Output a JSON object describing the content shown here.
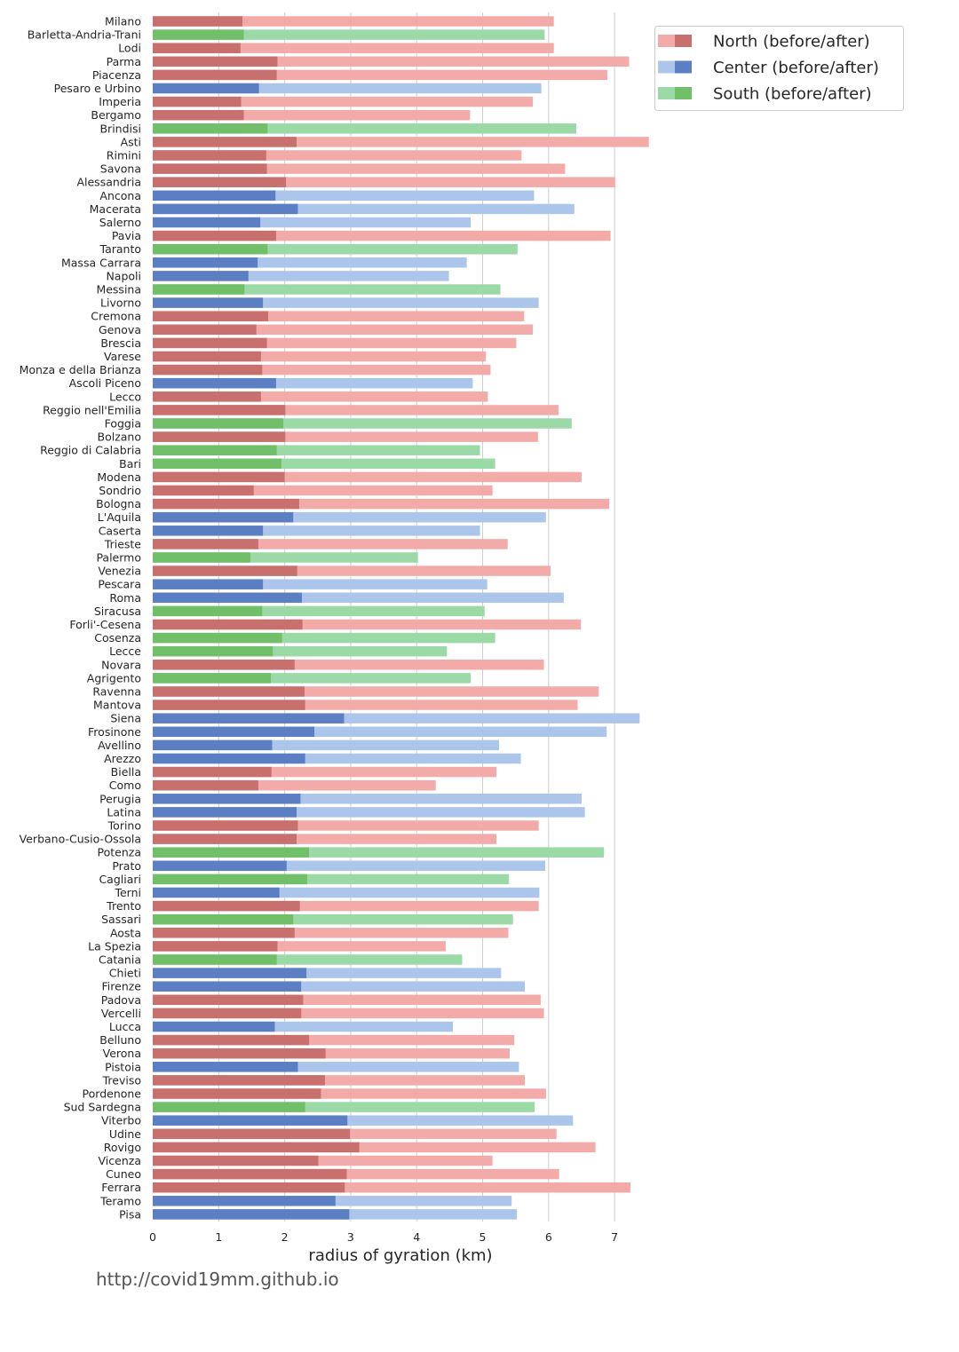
{
  "colors": {
    "North": {
      "before": "#c8706e",
      "after": "#f2aba8"
    },
    "Center": {
      "before": "#5b7fc2",
      "after": "#abc6ea"
    },
    "South": {
      "before": "#72bf6a",
      "after": "#9bdaa6"
    },
    "grid": "#cfcfcf",
    "text": "#262626"
  },
  "footer": {
    "url": "http://covid19mm.github.io"
  },
  "chart_data": {
    "type": "bar",
    "orientation": "horizontal",
    "stacked_overlay": true,
    "xlabel": "radius of gyration (km)",
    "xlim": [
      0,
      7.5
    ],
    "xticks": [
      0,
      1,
      2,
      3,
      4,
      5,
      6,
      7
    ],
    "grid": "vertical",
    "legend": {
      "placement": "top-right",
      "entries": [
        {
          "label": "North (before/after)",
          "group": "North"
        },
        {
          "label": "Center (before/after)",
          "group": "Center"
        },
        {
          "label": "South (before/after)",
          "group": "South"
        }
      ]
    },
    "series_names": [
      "before",
      "after"
    ],
    "rows": [
      {
        "province": "Milano",
        "group": "North",
        "before": 1.36,
        "after": 6.08
      },
      {
        "province": "Barletta-Andria-Trani",
        "group": "South",
        "before": 1.38,
        "after": 5.94
      },
      {
        "province": "Lodi",
        "group": "North",
        "before": 1.33,
        "after": 6.08
      },
      {
        "province": "Parma",
        "group": "North",
        "before": 1.89,
        "after": 7.22
      },
      {
        "province": "Piacenza",
        "group": "North",
        "before": 1.88,
        "after": 6.89
      },
      {
        "province": "Pesaro e Urbino",
        "group": "Center",
        "before": 1.61,
        "after": 5.89
      },
      {
        "province": "Imperia",
        "group": "North",
        "before": 1.34,
        "after": 5.76
      },
      {
        "province": "Bergamo",
        "group": "North",
        "before": 1.38,
        "after": 4.81
      },
      {
        "province": "Brindisi",
        "group": "South",
        "before": 1.74,
        "after": 6.42
      },
      {
        "province": "Asti",
        "group": "North",
        "before": 2.18,
        "after": 7.52
      },
      {
        "province": "Rimini",
        "group": "North",
        "before": 1.72,
        "after": 5.59
      },
      {
        "province": "Savona",
        "group": "North",
        "before": 1.73,
        "after": 6.25
      },
      {
        "province": "Alessandria",
        "group": "North",
        "before": 2.02,
        "after": 7.01
      },
      {
        "province": "Ancona",
        "group": "Center",
        "before": 1.86,
        "after": 5.78
      },
      {
        "province": "Macerata",
        "group": "Center",
        "before": 2.2,
        "after": 6.39
      },
      {
        "province": "Salerno",
        "group": "Center",
        "before": 1.63,
        "after": 4.82
      },
      {
        "province": "Pavia",
        "group": "North",
        "before": 1.87,
        "after": 6.94
      },
      {
        "province": "Taranto",
        "group": "South",
        "before": 1.74,
        "after": 5.53
      },
      {
        "province": "Massa Carrara",
        "group": "Center",
        "before": 1.59,
        "after": 4.76
      },
      {
        "province": "Napoli",
        "group": "Center",
        "before": 1.45,
        "after": 4.49
      },
      {
        "province": "Messina",
        "group": "South",
        "before": 1.39,
        "after": 5.27
      },
      {
        "province": "Livorno",
        "group": "Center",
        "before": 1.67,
        "after": 5.85
      },
      {
        "province": "Cremona",
        "group": "North",
        "before": 1.75,
        "after": 5.63
      },
      {
        "province": "Genova",
        "group": "North",
        "before": 1.57,
        "after": 5.76
      },
      {
        "province": "Brescia",
        "group": "North",
        "before": 1.73,
        "after": 5.51
      },
      {
        "province": "Varese",
        "group": "North",
        "before": 1.64,
        "after": 5.05
      },
      {
        "province": "Monza e della Brianza",
        "group": "North",
        "before": 1.66,
        "after": 5.12
      },
      {
        "province": "Ascoli Piceno",
        "group": "Center",
        "before": 1.87,
        "after": 4.85
      },
      {
        "province": "Lecco",
        "group": "North",
        "before": 1.64,
        "after": 5.08
      },
      {
        "province": "Reggio nell'Emilia",
        "group": "North",
        "before": 2.01,
        "after": 6.15
      },
      {
        "province": "Foggia",
        "group": "South",
        "before": 1.98,
        "after": 6.35
      },
      {
        "province": "Bolzano",
        "group": "North",
        "before": 2.01,
        "after": 5.84
      },
      {
        "province": "Reggio di Calabria",
        "group": "South",
        "before": 1.88,
        "after": 4.96
      },
      {
        "province": "Bari",
        "group": "South",
        "before": 1.95,
        "after": 5.19
      },
      {
        "province": "Modena",
        "group": "North",
        "before": 2.0,
        "after": 6.5
      },
      {
        "province": "Sondrio",
        "group": "North",
        "before": 1.53,
        "after": 5.15
      },
      {
        "province": "Bologna",
        "group": "North",
        "before": 2.22,
        "after": 6.92
      },
      {
        "province": "L'Aquila",
        "group": "Center",
        "before": 2.13,
        "after": 5.96
      },
      {
        "province": "Caserta",
        "group": "Center",
        "before": 1.67,
        "after": 4.96
      },
      {
        "province": "Trieste",
        "group": "North",
        "before": 1.6,
        "after": 5.38
      },
      {
        "province": "Palermo",
        "group": "South",
        "before": 1.48,
        "after": 4.02
      },
      {
        "province": "Venezia",
        "group": "North",
        "before": 2.19,
        "after": 6.03
      },
      {
        "province": "Pescara",
        "group": "Center",
        "before": 1.67,
        "after": 5.07
      },
      {
        "province": "Roma",
        "group": "Center",
        "before": 2.26,
        "after": 6.23
      },
      {
        "province": "Siracusa",
        "group": "South",
        "before": 1.66,
        "after": 5.03
      },
      {
        "province": "Forli'-Cesena",
        "group": "North",
        "before": 2.27,
        "after": 6.49
      },
      {
        "province": "Cosenza",
        "group": "South",
        "before": 1.96,
        "after": 5.19
      },
      {
        "province": "Lecce",
        "group": "South",
        "before": 1.82,
        "after": 4.46
      },
      {
        "province": "Novara",
        "group": "North",
        "before": 2.15,
        "after": 5.93
      },
      {
        "province": "Agrigento",
        "group": "South",
        "before": 1.79,
        "after": 4.82
      },
      {
        "province": "Ravenna",
        "group": "North",
        "before": 2.3,
        "after": 6.76
      },
      {
        "province": "Mantova",
        "group": "North",
        "before": 2.31,
        "after": 6.44
      },
      {
        "province": "Siena",
        "group": "Center",
        "before": 2.9,
        "after": 7.38
      },
      {
        "province": "Frosinone",
        "group": "Center",
        "before": 2.45,
        "after": 6.88
      },
      {
        "province": "Avellino",
        "group": "Center",
        "before": 1.81,
        "after": 5.25
      },
      {
        "province": "Arezzo",
        "group": "Center",
        "before": 2.31,
        "after": 5.58
      },
      {
        "province": "Biella",
        "group": "North",
        "before": 1.8,
        "after": 5.21
      },
      {
        "province": "Como",
        "group": "North",
        "before": 1.6,
        "after": 4.29
      },
      {
        "province": "Perugia",
        "group": "Center",
        "before": 2.24,
        "after": 6.5
      },
      {
        "province": "Latina",
        "group": "Center",
        "before": 2.18,
        "after": 6.55
      },
      {
        "province": "Torino",
        "group": "North",
        "before": 2.2,
        "after": 5.85
      },
      {
        "province": "Verbano-Cusio-Ossola",
        "group": "North",
        "before": 2.18,
        "after": 5.21
      },
      {
        "province": "Potenza",
        "group": "South",
        "before": 2.37,
        "after": 6.84
      },
      {
        "province": "Prato",
        "group": "Center",
        "before": 2.03,
        "after": 5.95
      },
      {
        "province": "Cagliari",
        "group": "South",
        "before": 2.34,
        "after": 5.4
      },
      {
        "province": "Terni",
        "group": "Center",
        "before": 1.92,
        "after": 5.86
      },
      {
        "province": "Trento",
        "group": "North",
        "before": 2.23,
        "after": 5.85
      },
      {
        "province": "Sassari",
        "group": "South",
        "before": 2.13,
        "after": 5.46
      },
      {
        "province": "Aosta",
        "group": "North",
        "before": 2.15,
        "after": 5.39
      },
      {
        "province": "La Spezia",
        "group": "North",
        "before": 1.89,
        "after": 4.44
      },
      {
        "province": "Catania",
        "group": "South",
        "before": 1.88,
        "after": 4.69
      },
      {
        "province": "Chieti",
        "group": "Center",
        "before": 2.33,
        "after": 5.28
      },
      {
        "province": "Firenze",
        "group": "Center",
        "before": 2.25,
        "after": 5.64
      },
      {
        "province": "Padova",
        "group": "North",
        "before": 2.28,
        "after": 5.88
      },
      {
        "province": "Vercelli",
        "group": "North",
        "before": 2.25,
        "after": 5.93
      },
      {
        "province": "Lucca",
        "group": "Center",
        "before": 1.85,
        "after": 4.55
      },
      {
        "province": "Belluno",
        "group": "North",
        "before": 2.37,
        "after": 5.48
      },
      {
        "province": "Verona",
        "group": "North",
        "before": 2.62,
        "after": 5.41
      },
      {
        "province": "Pistoia",
        "group": "Center",
        "before": 2.2,
        "after": 5.55
      },
      {
        "province": "Treviso",
        "group": "North",
        "before": 2.61,
        "after": 5.64
      },
      {
        "province": "Pordenone",
        "group": "North",
        "before": 2.55,
        "after": 5.96
      },
      {
        "province": "Sud Sardegna",
        "group": "South",
        "before": 2.31,
        "after": 5.79
      },
      {
        "province": "Viterbo",
        "group": "Center",
        "before": 2.95,
        "after": 6.37
      },
      {
        "province": "Udine",
        "group": "North",
        "before": 2.99,
        "after": 6.12
      },
      {
        "province": "Rovigo",
        "group": "North",
        "before": 3.13,
        "after": 6.71
      },
      {
        "province": "Vicenza",
        "group": "North",
        "before": 2.51,
        "after": 5.15
      },
      {
        "province": "Cuneo",
        "group": "North",
        "before": 2.94,
        "after": 6.16
      },
      {
        "province": "Ferrara",
        "group": "North",
        "before": 2.91,
        "after": 7.24
      },
      {
        "province": "Teramo",
        "group": "Center",
        "before": 2.77,
        "after": 5.44
      },
      {
        "province": "Pisa",
        "group": "Center",
        "before": 2.98,
        "after": 5.52
      }
    ]
  }
}
